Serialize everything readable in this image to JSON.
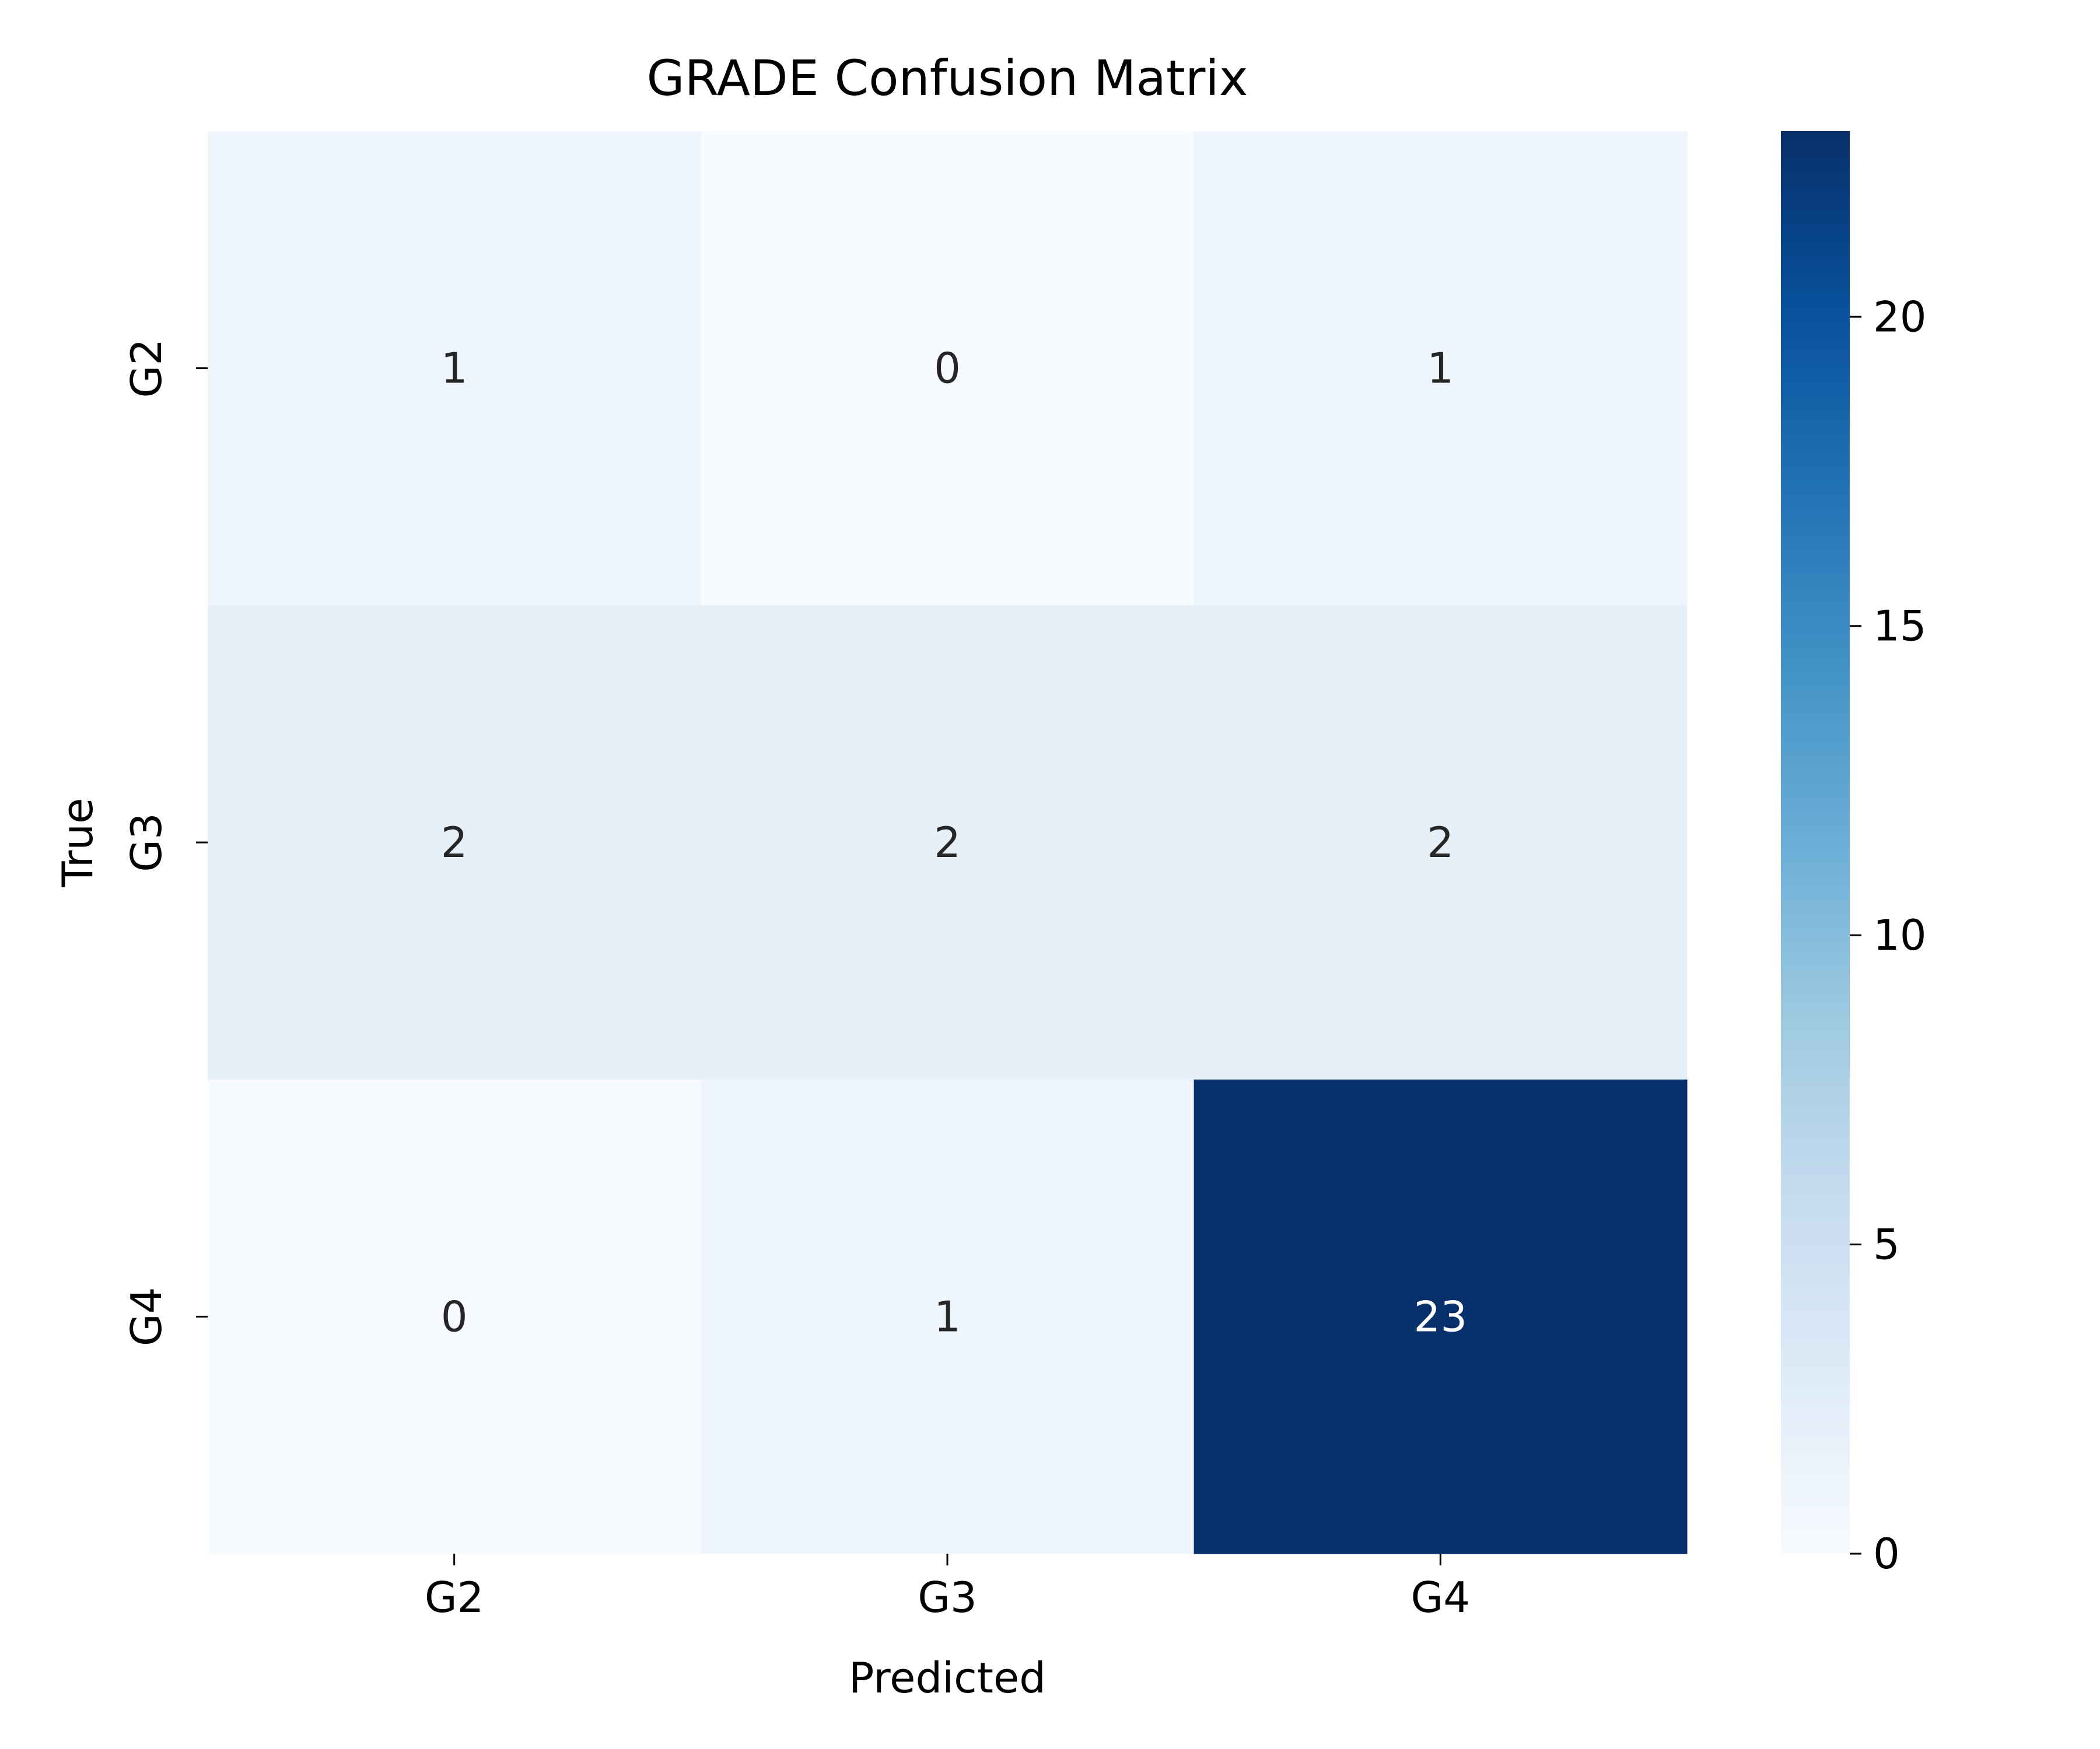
{
  "chart_data": {
    "type": "heatmap",
    "title": "GRADE Confusion Matrix",
    "xlabel": "Predicted",
    "ylabel": "True",
    "x_categories": [
      "G2",
      "G3",
      "G4"
    ],
    "y_categories": [
      "G2",
      "G3",
      "G4"
    ],
    "values": [
      [
        1,
        0,
        1
      ],
      [
        2,
        2,
        2
      ],
      [
        0,
        1,
        23
      ]
    ],
    "colormap": "Blues",
    "colorbar": {
      "range": [
        0,
        23
      ],
      "ticks": [
        0,
        5,
        10,
        15,
        20
      ]
    }
  }
}
